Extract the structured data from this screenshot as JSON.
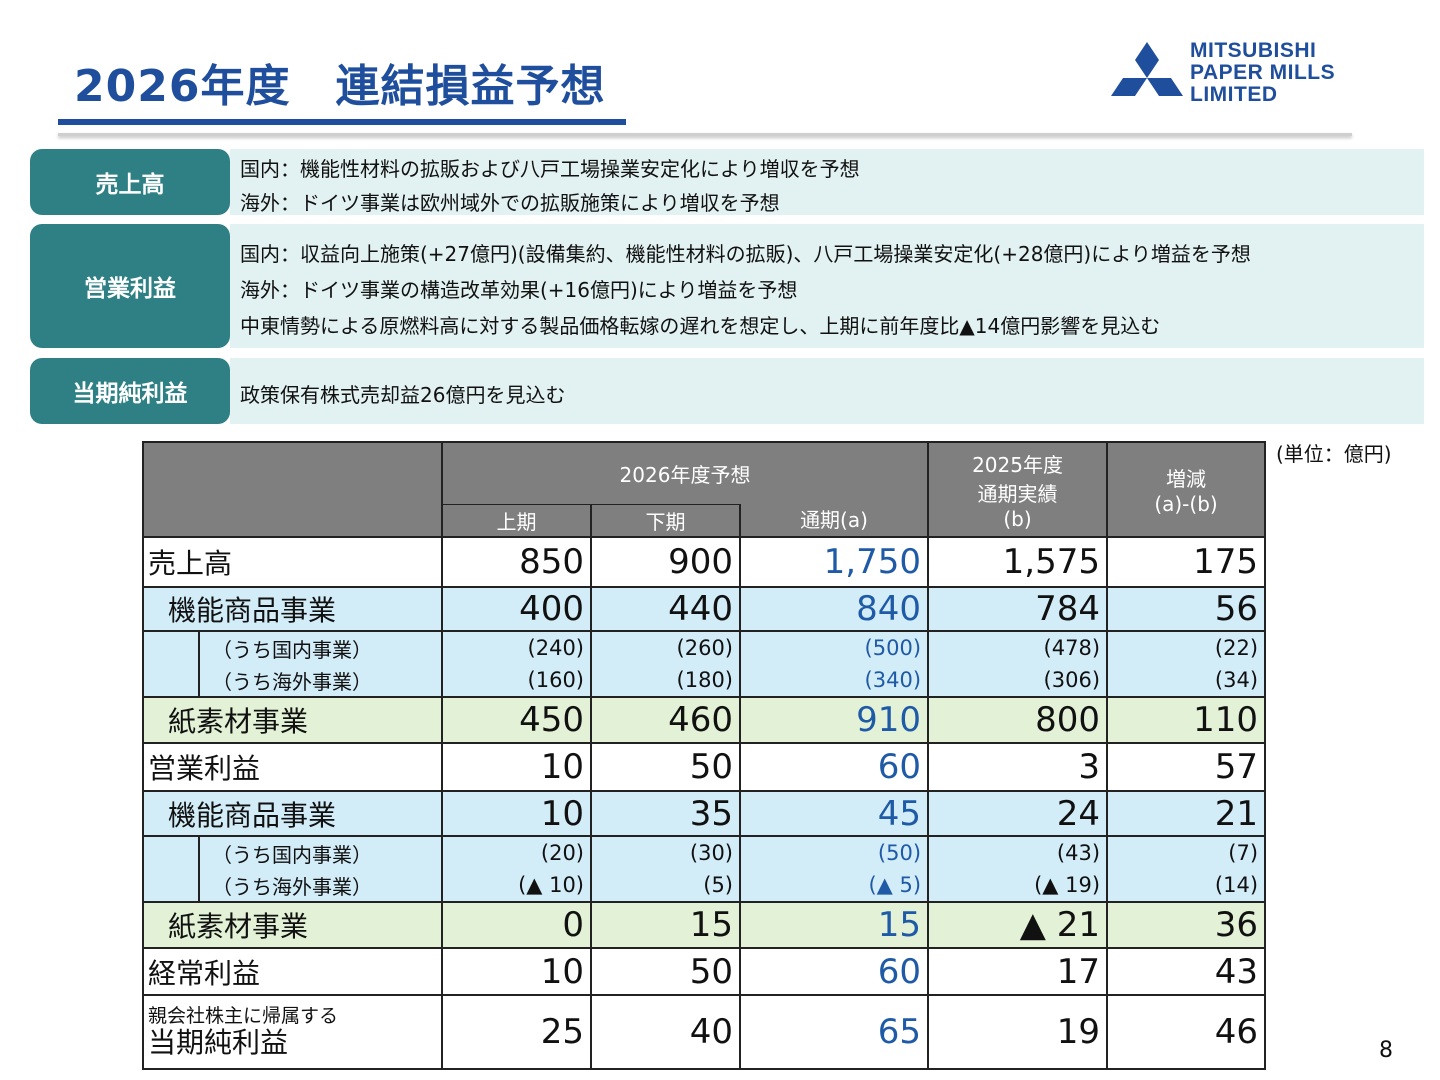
{
  "header": {
    "title": "2026年度　連結損益予想",
    "logo_lines": [
      "MITSUBISHI",
      "PAPER MILLS",
      "LIMITED"
    ],
    "brand_color": "#1f4e9c"
  },
  "summary": [
    {
      "label": "売上高",
      "lines": [
        "国内：機能性材料の拡販および八戸工場操業安定化により増収を予想",
        "海外：ドイツ事業は欧州域外での拡販施策により増収を予想"
      ]
    },
    {
      "label": "営業利益",
      "lines": [
        "国内：収益向上施策(+27億円)(設備集約、機能性材料の拡販)、八戸工場操業安定化(+28億円)により増益を予想",
        "海外：ドイツ事業の構造改革効果(+16億円)により増益を予想",
        "中東情勢による原燃料高に対する製品価格転嫁の遅れを想定し、上期に前年度比▲14億円影響を見込む"
      ]
    },
    {
      "label": "当期純利益",
      "lines": [
        "政策保有株式売却益26億円を見込む"
      ]
    }
  ],
  "unit_note": "(単位：億円)",
  "table": {
    "header_forecast": "2026年度予想",
    "col_h1": "上期",
    "col_h2": "下期",
    "col_full": "通期(a)",
    "col_prev": [
      "2025年度",
      "通期実績",
      "(b)"
    ],
    "col_diff": [
      "増減",
      "(a)-(b)"
    ],
    "rows": {
      "sales": {
        "label": "売上高",
        "values": [
          "850",
          "900",
          "1,750",
          "1,575",
          "175"
        ]
      },
      "sales_func": {
        "label": "機能商品事業",
        "values": [
          "400",
          "440",
          "840",
          "784",
          "56"
        ]
      },
      "sales_func_dom": {
        "label": "（うち国内事業）",
        "values": [
          "(240)",
          "(260)",
          "(500)",
          "(478)",
          "(22)"
        ]
      },
      "sales_func_ovs": {
        "label": "（うち海外事業）",
        "values": [
          "(160)",
          "(180)",
          "(340)",
          "(306)",
          "(34)"
        ]
      },
      "sales_paper": {
        "label": "紙素材事業",
        "values": [
          "450",
          "460",
          "910",
          "800",
          "110"
        ]
      },
      "op": {
        "label": "営業利益",
        "values": [
          "10",
          "50",
          "60",
          "3",
          "57"
        ]
      },
      "op_func": {
        "label": "機能商品事業",
        "values": [
          "10",
          "35",
          "45",
          "24",
          "21"
        ]
      },
      "op_func_dom": {
        "label": "（うち国内事業）",
        "values": [
          "(20)",
          "(30)",
          "(50)",
          "(43)",
          "(7)"
        ]
      },
      "op_func_ovs": {
        "label": "（うち海外事業）",
        "values": [
          "(▲ 10)",
          "(5)",
          "(▲ 5)",
          "(▲ 19)",
          "(14)"
        ]
      },
      "op_paper": {
        "label": "紙素材事業",
        "values": [
          "0",
          "15",
          "15",
          "▲ 21",
          "36"
        ]
      },
      "ordinary": {
        "label": "経常利益",
        "values": [
          "10",
          "50",
          "60",
          "17",
          "43"
        ]
      },
      "net": {
        "label_small": "親会社株主に帰属する",
        "label": "当期純利益",
        "values": [
          "25",
          "40",
          "65",
          "19",
          "46"
        ]
      }
    }
  },
  "page_number": "8"
}
